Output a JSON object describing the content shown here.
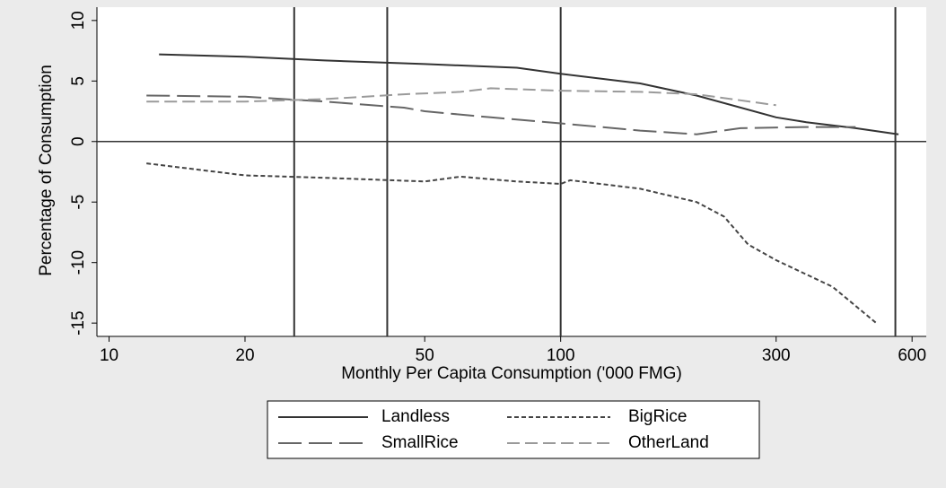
{
  "chart_data": {
    "type": "line",
    "x_label": "Monthly Per Capita Consumption ('000 FMG)",
    "y_label": "Percentage of Consumption",
    "xscale": "log",
    "xlim": [
      9.4,
      645
    ],
    "xticks": [
      10,
      20,
      50,
      100,
      300,
      600
    ],
    "ylim": [
      -16.1,
      11.1
    ],
    "yticks": [
      10,
      5,
      0,
      -5,
      -10,
      -15
    ],
    "xlines": [
      25.7,
      41.3,
      100,
      551
    ],
    "ylines": [
      0
    ],
    "legend": "bottom",
    "series": [
      {
        "name": "Landless",
        "color": "#333333",
        "dash": "solid",
        "x": [
          12.9,
          20,
          30,
          50,
          80,
          100,
          150,
          200,
          300,
          350,
          450,
          560
        ],
        "values": [
          7.2,
          7.0,
          6.7,
          6.4,
          6.1,
          5.6,
          4.8,
          3.8,
          2.0,
          1.6,
          1.1,
          0.6
        ]
      },
      {
        "name": "BigRice",
        "color": "#444444",
        "dash": "short",
        "x": [
          12.1,
          20,
          30,
          50,
          60,
          80,
          100,
          105,
          150,
          200,
          230,
          260,
          300,
          400,
          500
        ],
        "values": [
          -1.8,
          -2.8,
          -3.0,
          -3.3,
          -2.9,
          -3.3,
          -3.5,
          -3.2,
          -3.9,
          -5.0,
          -6.2,
          -8.5,
          -9.8,
          -12.0,
          -15.0
        ]
      },
      {
        "name": "SmallRice",
        "color": "#666666",
        "dash": "long",
        "x": [
          12.1,
          20,
          30,
          45,
          50,
          70,
          100,
          150,
          200,
          250,
          350,
          450
        ],
        "values": [
          3.8,
          3.7,
          3.3,
          2.8,
          2.5,
          2.0,
          1.5,
          0.9,
          0.6,
          1.1,
          1.2,
          1.2
        ]
      },
      {
        "name": "OtherLand",
        "color": "#9a9a9a",
        "dash": "medium",
        "x": [
          12.1,
          20,
          30,
          45,
          60,
          70,
          100,
          150,
          200,
          300
        ],
        "values": [
          3.3,
          3.3,
          3.5,
          3.9,
          4.1,
          4.4,
          4.2,
          4.1,
          3.9,
          3.0
        ]
      }
    ]
  }
}
